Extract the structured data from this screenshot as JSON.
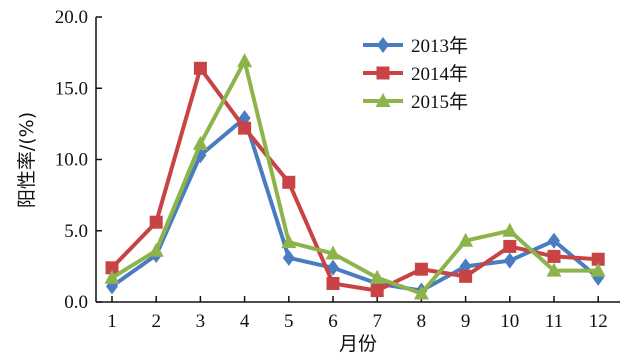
{
  "chart_data": {
    "type": "line",
    "title": "",
    "xlabel": "月份",
    "ylabel": "阳性率/(%)",
    "x": [
      1,
      2,
      3,
      4,
      5,
      6,
      7,
      8,
      9,
      10,
      11,
      12
    ],
    "x_tick_labels": [
      "1",
      "2",
      "3",
      "4",
      "5",
      "6",
      "7",
      "8",
      "9",
      "10",
      "11",
      "12"
    ],
    "ylim": [
      0,
      20
    ],
    "y_ticks": [
      "0.0",
      "5.0",
      "10.0",
      "15.0",
      "20.0"
    ],
    "grid": false,
    "legend": "top-right",
    "series": [
      {
        "name": "2013年",
        "color": "#4a7cc1",
        "marker": "diamond",
        "values": [
          1.1,
          3.3,
          10.3,
          12.9,
          3.1,
          2.4,
          1.3,
          0.8,
          2.5,
          2.9,
          4.3,
          1.7
        ]
      },
      {
        "name": "2014年",
        "color": "#c84343",
        "marker": "square",
        "values": [
          2.4,
          5.6,
          16.4,
          12.2,
          8.4,
          1.3,
          0.8,
          2.3,
          1.8,
          3.9,
          3.2,
          3.0
        ]
      },
      {
        "name": "2015年",
        "color": "#8db44a",
        "marker": "triangle",
        "values": [
          1.7,
          3.6,
          11.1,
          16.9,
          4.2,
          3.4,
          1.7,
          0.6,
          4.3,
          5.0,
          2.2,
          2.2
        ]
      }
    ]
  }
}
